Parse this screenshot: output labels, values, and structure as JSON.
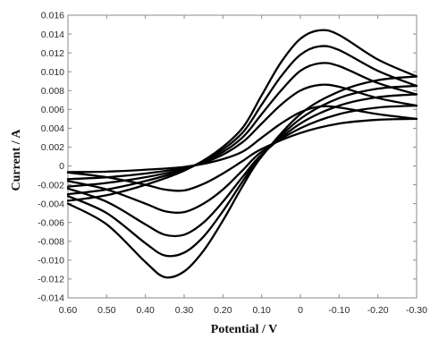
{
  "chart_data": {
    "type": "line",
    "title": "",
    "xlabel": "Potential / V",
    "ylabel": "Current / A",
    "xlim": [
      0.6,
      -0.3
    ],
    "ylim": [
      -0.014,
      0.016
    ],
    "x_axis_reversed": true,
    "x_ticks": [
      "0.60",
      "0.50",
      "0.40",
      "0.30",
      "0.20",
      "0.10",
      "0",
      "-0.10",
      "-0.20",
      "-0.30"
    ],
    "y_ticks": [
      "0.016",
      "0.014",
      "0.012",
      "0.010",
      "0.008",
      "0.006",
      "0.004",
      "0.002",
      "0",
      "-0.002",
      "-0.004",
      "-0.006",
      "-0.008",
      "-0.010",
      "-0.012",
      "-0.014"
    ],
    "grid": false,
    "legend": "none",
    "line_color": "#000000",
    "series": [
      {
        "forward_scan": [
          [
            0.6,
            -0.00065
          ],
          [
            0.5,
            -0.0006
          ],
          [
            0.4,
            -0.0004
          ],
          [
            0.3,
            -0.0001
          ],
          [
            0.22,
            0.0005
          ],
          [
            0.15,
            0.0015
          ],
          [
            0.1,
            0.003
          ],
          [
            0.05,
            0.0045
          ],
          [
            0.0,
            0.0057
          ],
          [
            -0.05,
            0.0063
          ],
          [
            -0.1,
            0.0062
          ],
          [
            -0.2,
            0.0055
          ],
          [
            -0.3,
            0.005
          ]
        ],
        "reverse_scan": [
          [
            -0.3,
            0.005
          ],
          [
            -0.2,
            0.0049
          ],
          [
            -0.1,
            0.0045
          ],
          [
            0.0,
            0.0035
          ],
          [
            0.1,
            0.0018
          ],
          [
            0.15,
            0.0005
          ],
          [
            0.2,
            -0.0008
          ],
          [
            0.25,
            -0.0019
          ],
          [
            0.3,
            -0.0026
          ],
          [
            0.35,
            -0.0025
          ],
          [
            0.4,
            -0.002
          ],
          [
            0.5,
            -0.0012
          ],
          [
            0.6,
            -0.0007
          ]
        ]
      },
      {
        "forward_scan": [
          [
            0.6,
            -0.0014
          ],
          [
            0.5,
            -0.0012
          ],
          [
            0.4,
            -0.0008
          ],
          [
            0.3,
            -0.0002
          ],
          [
            0.22,
            0.0008
          ],
          [
            0.15,
            0.0025
          ],
          [
            0.1,
            0.0045
          ],
          [
            0.05,
            0.0065
          ],
          [
            0.0,
            0.008
          ],
          [
            -0.05,
            0.0086
          ],
          [
            -0.1,
            0.0084
          ],
          [
            -0.2,
            0.0072
          ],
          [
            -0.3,
            0.0064
          ]
        ],
        "reverse_scan": [
          [
            -0.3,
            0.0064
          ],
          [
            -0.2,
            0.0062
          ],
          [
            -0.1,
            0.0055
          ],
          [
            0.0,
            0.004
          ],
          [
            0.1,
            0.0015
          ],
          [
            0.15,
            -0.0005
          ],
          [
            0.2,
            -0.0025
          ],
          [
            0.25,
            -0.004
          ],
          [
            0.3,
            -0.0049
          ],
          [
            0.35,
            -0.0048
          ],
          [
            0.4,
            -0.004
          ],
          [
            0.5,
            -0.0025
          ],
          [
            0.6,
            -0.0016
          ]
        ]
      },
      {
        "forward_scan": [
          [
            0.6,
            -0.0022
          ],
          [
            0.5,
            -0.0018
          ],
          [
            0.4,
            -0.0012
          ],
          [
            0.3,
            -0.0003
          ],
          [
            0.22,
            0.001
          ],
          [
            0.15,
            0.003
          ],
          [
            0.1,
            0.0055
          ],
          [
            0.05,
            0.008
          ],
          [
            0.0,
            0.0101
          ],
          [
            -0.05,
            0.0109
          ],
          [
            -0.1,
            0.0106
          ],
          [
            -0.2,
            0.0088
          ],
          [
            -0.3,
            0.0076
          ]
        ],
        "reverse_scan": [
          [
            -0.3,
            0.0076
          ],
          [
            -0.2,
            0.0073
          ],
          [
            -0.1,
            0.0064
          ],
          [
            0.0,
            0.0045
          ],
          [
            0.1,
            0.0012
          ],
          [
            0.15,
            -0.0012
          ],
          [
            0.2,
            -0.0038
          ],
          [
            0.25,
            -0.006
          ],
          [
            0.3,
            -0.0073
          ],
          [
            0.35,
            -0.0073
          ],
          [
            0.4,
            -0.0062
          ],
          [
            0.5,
            -0.0038
          ],
          [
            0.6,
            -0.0024
          ]
        ]
      },
      {
        "forward_scan": [
          [
            0.6,
            -0.003
          ],
          [
            0.5,
            -0.0025
          ],
          [
            0.4,
            -0.0016
          ],
          [
            0.3,
            -0.0004
          ],
          [
            0.22,
            0.0012
          ],
          [
            0.15,
            0.0035
          ],
          [
            0.1,
            0.0065
          ],
          [
            0.05,
            0.0095
          ],
          [
            0.0,
            0.0118
          ],
          [
            -0.05,
            0.0127
          ],
          [
            -0.1,
            0.0123
          ],
          [
            -0.2,
            0.0101
          ],
          [
            -0.3,
            0.0085
          ]
        ],
        "reverse_scan": [
          [
            -0.3,
            0.0085
          ],
          [
            -0.2,
            0.0082
          ],
          [
            -0.1,
            0.0072
          ],
          [
            0.0,
            0.005
          ],
          [
            0.1,
            0.0011
          ],
          [
            0.15,
            -0.0017
          ],
          [
            0.2,
            -0.0048
          ],
          [
            0.25,
            -0.0075
          ],
          [
            0.3,
            -0.0092
          ],
          [
            0.35,
            -0.0095
          ],
          [
            0.4,
            -0.0082
          ],
          [
            0.5,
            -0.005
          ],
          [
            0.6,
            -0.0032
          ]
        ]
      },
      {
        "forward_scan": [
          [
            0.6,
            -0.0037
          ],
          [
            0.5,
            -0.0031
          ],
          [
            0.4,
            -0.002
          ],
          [
            0.3,
            -0.0005
          ],
          [
            0.22,
            0.0014
          ],
          [
            0.15,
            0.004
          ],
          [
            0.1,
            0.0075
          ],
          [
            0.05,
            0.011
          ],
          [
            0.0,
            0.0135
          ],
          [
            -0.05,
            0.0144
          ],
          [
            -0.1,
            0.0139
          ],
          [
            -0.2,
            0.0113
          ],
          [
            -0.3,
            0.0095
          ]
        ],
        "reverse_scan": [
          [
            -0.3,
            0.0095
          ],
          [
            -0.2,
            0.0091
          ],
          [
            -0.1,
            0.0079
          ],
          [
            0.0,
            0.0055
          ],
          [
            0.1,
            0.001
          ],
          [
            0.15,
            -0.0022
          ],
          [
            0.2,
            -0.0058
          ],
          [
            0.25,
            -0.009
          ],
          [
            0.3,
            -0.0112
          ],
          [
            0.35,
            -0.0118
          ],
          [
            0.4,
            -0.0102
          ],
          [
            0.5,
            -0.0062
          ],
          [
            0.6,
            -0.004
          ]
        ]
      }
    ]
  }
}
